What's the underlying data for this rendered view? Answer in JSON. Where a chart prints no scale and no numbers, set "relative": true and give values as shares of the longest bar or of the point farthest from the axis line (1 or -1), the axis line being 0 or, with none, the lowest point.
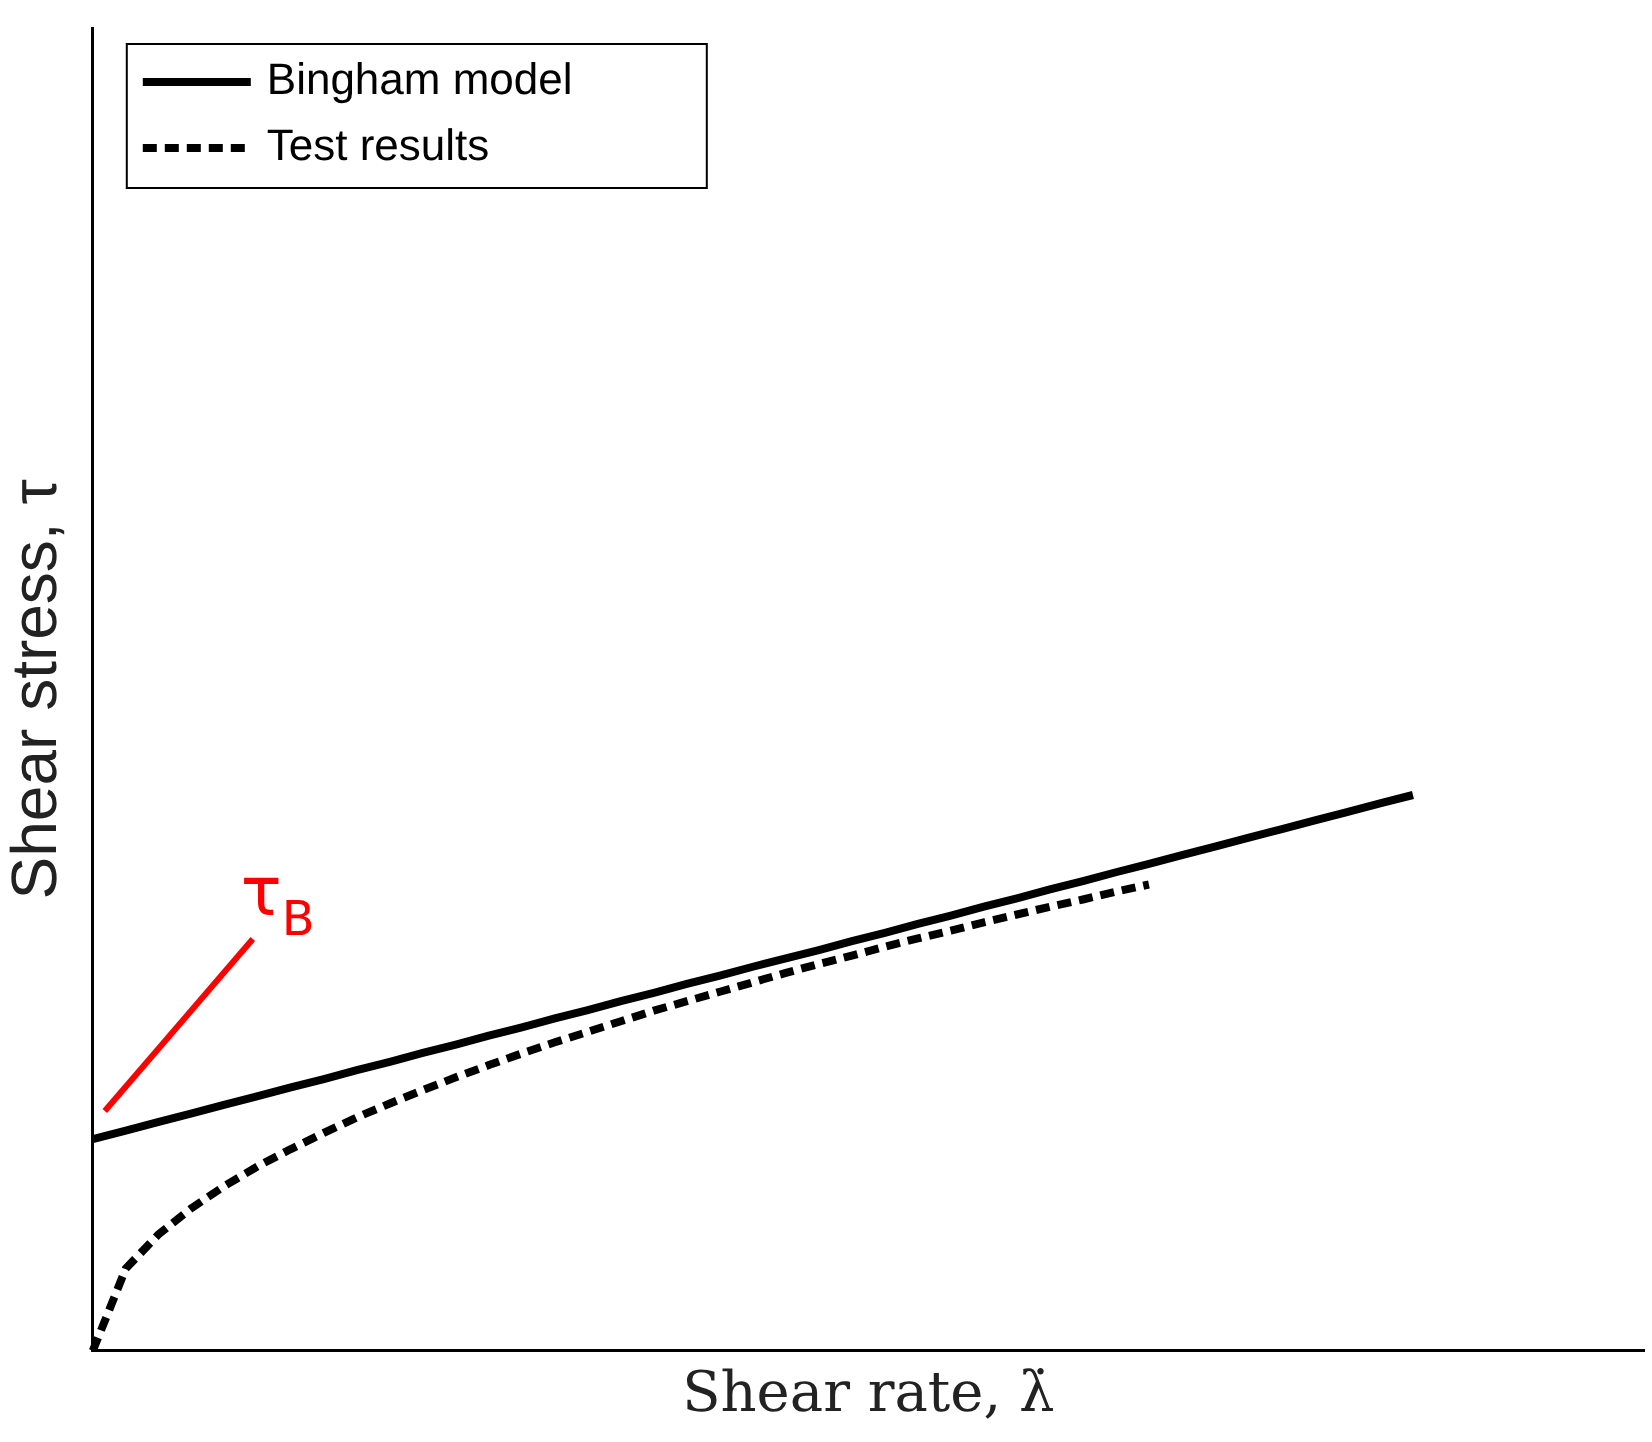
{
  "chart_data": {
    "type": "line",
    "relative": true,
    "xlabel": "Shear rate, λ̇",
    "ylabel": "Shear stress, τ",
    "legend": "top left",
    "grid": false,
    "marker": "none",
    "categories": [
      null,
      null,
      null,
      null,
      null,
      null,
      null,
      null,
      null,
      null,
      null,
      null,
      null,
      null,
      null,
      null,
      null,
      null,
      null,
      null,
      null,
      null,
      null,
      null,
      null,
      null,
      null,
      null,
      null,
      null,
      null,
      null,
      null,
      null,
      null,
      null,
      null,
      null,
      null,
      null,
      null,
      null,
      null,
      null,
      null,
      null,
      null,
      null
    ],
    "series": [
      {
        "name": "Bingham model",
        "color": "#000000",
        "line_style": "solid",
        "values": [
          0.381,
          0.396,
          0.412,
          0.427,
          0.443,
          0.458,
          0.474,
          0.489,
          0.505,
          0.52,
          0.536,
          0.551,
          0.567,
          0.582,
          0.598,
          0.613,
          0.629,
          0.644,
          0.66,
          0.675,
          0.691,
          0.706,
          0.721,
          0.737,
          0.752,
          0.768,
          0.783,
          0.799,
          0.814,
          0.83,
          0.845,
          0.861,
          0.876,
          0.892,
          0.907,
          0.923,
          0.938,
          0.954,
          0.969,
          0.985,
          1,
          null,
          null,
          null,
          null,
          null,
          null,
          null
        ]
      },
      {
        "name": "Test results",
        "color": "#000000",
        "line_style": "dashed",
        "values": [
          0,
          0.148,
          0.21,
          0.257,
          0.297,
          0.332,
          0.363,
          0.392,
          0.42,
          0.445,
          0.469,
          0.492,
          0.514,
          0.535,
          0.555,
          0.574,
          0.593,
          0.612,
          0.629,
          0.646,
          0.663,
          0.68,
          0.696,
          0.711,
          0.727,
          0.742,
          0.756,
          0.771,
          0.785,
          0.799,
          0.812,
          0.826,
          0.839,
          null,
          null,
          null,
          null,
          null,
          null,
          null,
          null,
          null,
          null,
          null,
          null,
          null,
          null,
          null
        ]
      }
    ],
    "annotations": [
      "τ$_{B}$"
    ]
  }
}
